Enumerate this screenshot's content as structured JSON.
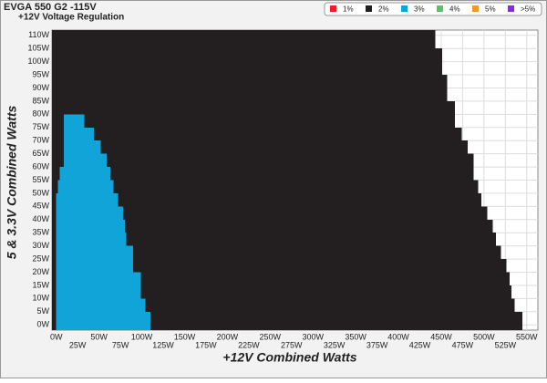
{
  "chart_data": {
    "type": "crossload",
    "title": "EVGA 550 G2 -115V",
    "subtitle": "+12V Voltage Regulation",
    "x_label": "+12V Combined Watts",
    "y_label": "5 & 3.3V Combined Watts",
    "xlim": [
      -5,
      563
    ],
    "ylim": [
      -2,
      112
    ],
    "xticks": [
      {
        "value": 0,
        "label": "0W"
      },
      {
        "value": 25,
        "label": "25W"
      },
      {
        "value": 50,
        "label": "50W"
      },
      {
        "value": 75,
        "label": "75W"
      },
      {
        "value": 100,
        "label": "100W"
      },
      {
        "value": 125,
        "label": "125W"
      },
      {
        "value": 150,
        "label": "150W"
      },
      {
        "value": 175,
        "label": "175W"
      },
      {
        "value": 200,
        "label": "200W"
      },
      {
        "value": 225,
        "label": "225W"
      },
      {
        "value": 250,
        "label": "250W"
      },
      {
        "value": 275,
        "label": "275W"
      },
      {
        "value": 300,
        "label": "300W"
      },
      {
        "value": 325,
        "label": "325W"
      },
      {
        "value": 350,
        "label": "350W"
      },
      {
        "value": 375,
        "label": "375W"
      },
      {
        "value": 400,
        "label": "400W"
      },
      {
        "value": 425,
        "label": "425W"
      },
      {
        "value": 450,
        "label": "450W"
      },
      {
        "value": 475,
        "label": "475W"
      },
      {
        "value": 500,
        "label": "500W"
      },
      {
        "value": 525,
        "label": "525W"
      },
      {
        "value": 550,
        "label": "550W"
      }
    ],
    "yticks": [
      {
        "value": 0,
        "label": "0W"
      },
      {
        "value": 5,
        "label": "5W"
      },
      {
        "value": 10,
        "label": "10W"
      },
      {
        "value": 15,
        "label": "15W"
      },
      {
        "value": 20,
        "label": "20W"
      },
      {
        "value": 25,
        "label": "25W"
      },
      {
        "value": 30,
        "label": "30W"
      },
      {
        "value": 35,
        "label": "35W"
      },
      {
        "value": 40,
        "label": "40W"
      },
      {
        "value": 45,
        "label": "45W"
      },
      {
        "value": 50,
        "label": "50W"
      },
      {
        "value": 55,
        "label": "55W"
      },
      {
        "value": 60,
        "label": "60W"
      },
      {
        "value": 65,
        "label": "65W"
      },
      {
        "value": 70,
        "label": "70W"
      },
      {
        "value": 75,
        "label": "75W"
      },
      {
        "value": 80,
        "label": "80W"
      },
      {
        "value": 85,
        "label": "85W"
      },
      {
        "value": 90,
        "label": "90W"
      },
      {
        "value": 95,
        "label": "95W"
      },
      {
        "value": 100,
        "label": "100W"
      },
      {
        "value": 105,
        "label": "105W"
      },
      {
        "value": 110,
        "label": "110W"
      }
    ],
    "grid": true,
    "series": [
      {
        "name": "1%",
        "color": "#e8202a"
      },
      {
        "name": "2%",
        "color": "#231f20",
        "y_edges": [
          0,
          5,
          10,
          15,
          20,
          25,
          30,
          35,
          40,
          45,
          50,
          55,
          60,
          65,
          70,
          75,
          80,
          85,
          90,
          95,
          100,
          105,
          110
        ],
        "x_max": [
          545,
          536,
          532,
          530,
          526,
          520,
          514,
          510,
          504,
          497,
          493,
          488,
          488,
          481,
          474,
          466,
          466,
          457,
          457,
          451,
          451,
          443
        ]
      },
      {
        "name": "3%",
        "color": "#10a4d8",
        "y_edges": [
          0,
          5,
          10,
          15,
          20,
          25,
          30,
          35,
          40,
          45,
          50,
          55,
          60,
          65,
          70,
          75,
          80
        ],
        "x_min": [
          0,
          0,
          0,
          0,
          0,
          0,
          0,
          0,
          0,
          0,
          2,
          4,
          9,
          9,
          9,
          9
        ],
        "x_max": [
          110,
          104,
          99,
          99,
          90,
          90,
          82,
          80,
          78,
          72,
          67,
          63,
          59,
          52,
          44,
          33
        ]
      },
      {
        "name": "4%",
        "color": "#5bbf6b"
      },
      {
        "name": "5%",
        "color": "#f0962a"
      },
      {
        "name": ">5%",
        "color": "#8a2be2"
      }
    ]
  }
}
